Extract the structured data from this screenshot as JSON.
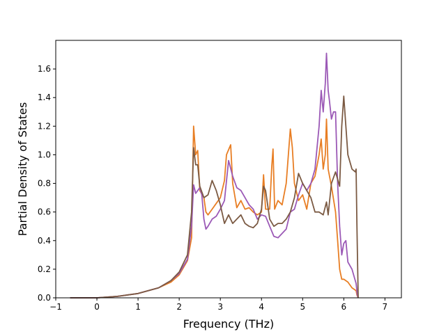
{
  "chart_data": {
    "type": "line",
    "title": "",
    "xlabel": "Frequency (THz)",
    "ylabel": "Partial Density of States",
    "xlim": [
      -1,
      7.4
    ],
    "ylim": [
      0,
      1.8
    ],
    "x_ticks": [
      -1,
      0,
      1,
      2,
      3,
      4,
      5,
      6,
      7
    ],
    "y_ticks": [
      0.0,
      0.2,
      0.4,
      0.6,
      0.8,
      1.0,
      1.2,
      1.4,
      1.6
    ],
    "x_tick_labels": [
      "−1",
      "0",
      "1",
      "2",
      "3",
      "4",
      "5",
      "6",
      "7"
    ],
    "y_tick_labels": [
      "0.0",
      "0.2",
      "0.4",
      "0.6",
      "0.8",
      "1.0",
      "1.2",
      "1.4",
      "1.6"
    ],
    "grid": false,
    "legend": "none",
    "series": [
      {
        "color": "#e87e24",
        "points": [
          [
            -0.65,
            0
          ],
          [
            0,
            0
          ],
          [
            0.5,
            0.01
          ],
          [
            1.0,
            0.03
          ],
          [
            1.5,
            0.07
          ],
          [
            1.8,
            0.11
          ],
          [
            2.0,
            0.16
          ],
          [
            2.2,
            0.26
          ],
          [
            2.3,
            0.42
          ],
          [
            2.35,
            1.2
          ],
          [
            2.4,
            1.0
          ],
          [
            2.45,
            1.03
          ],
          [
            2.5,
            0.75
          ],
          [
            2.6,
            0.7
          ],
          [
            2.65,
            0.6
          ],
          [
            2.7,
            0.58
          ],
          [
            2.8,
            0.62
          ],
          [
            2.9,
            0.66
          ],
          [
            3.0,
            0.7
          ],
          [
            3.1,
            0.82
          ],
          [
            3.15,
            1.0
          ],
          [
            3.25,
            1.07
          ],
          [
            3.3,
            0.8
          ],
          [
            3.4,
            0.63
          ],
          [
            3.5,
            0.68
          ],
          [
            3.6,
            0.62
          ],
          [
            3.7,
            0.63
          ],
          [
            3.8,
            0.6
          ],
          [
            3.9,
            0.58
          ],
          [
            4.0,
            0.6
          ],
          [
            4.05,
            0.86
          ],
          [
            4.1,
            0.62
          ],
          [
            4.2,
            0.62
          ],
          [
            4.25,
            0.92
          ],
          [
            4.28,
            1.04
          ],
          [
            4.32,
            0.62
          ],
          [
            4.4,
            0.68
          ],
          [
            4.5,
            0.65
          ],
          [
            4.6,
            0.8
          ],
          [
            4.7,
            1.18
          ],
          [
            4.75,
            1.05
          ],
          [
            4.8,
            0.8
          ],
          [
            4.9,
            0.68
          ],
          [
            5.0,
            0.72
          ],
          [
            5.1,
            0.62
          ],
          [
            5.2,
            0.8
          ],
          [
            5.3,
            0.85
          ],
          [
            5.4,
            1.0
          ],
          [
            5.45,
            1.11
          ],
          [
            5.5,
            0.9
          ],
          [
            5.55,
            1.0
          ],
          [
            5.58,
            1.25
          ],
          [
            5.62,
            0.9
          ],
          [
            5.7,
            0.78
          ],
          [
            5.8,
            0.6
          ],
          [
            5.85,
            0.4
          ],
          [
            5.9,
            0.2
          ],
          [
            5.95,
            0.13
          ],
          [
            6.0,
            0.13
          ],
          [
            6.1,
            0.11
          ],
          [
            6.2,
            0.07
          ],
          [
            6.3,
            0.05
          ],
          [
            6.32,
            0.02
          ],
          [
            6.35,
            0
          ]
        ]
      },
      {
        "color": "#9b59b6",
        "points": [
          [
            -0.65,
            0
          ],
          [
            0,
            0
          ],
          [
            0.5,
            0.01
          ],
          [
            1.0,
            0.03
          ],
          [
            1.5,
            0.07
          ],
          [
            1.8,
            0.12
          ],
          [
            2.0,
            0.17
          ],
          [
            2.2,
            0.27
          ],
          [
            2.3,
            0.5
          ],
          [
            2.35,
            0.79
          ],
          [
            2.4,
            0.73
          ],
          [
            2.5,
            0.77
          ],
          [
            2.55,
            0.72
          ],
          [
            2.6,
            0.55
          ],
          [
            2.65,
            0.48
          ],
          [
            2.7,
            0.5
          ],
          [
            2.8,
            0.55
          ],
          [
            2.9,
            0.57
          ],
          [
            3.0,
            0.62
          ],
          [
            3.1,
            0.68
          ],
          [
            3.2,
            0.96
          ],
          [
            3.3,
            0.85
          ],
          [
            3.4,
            0.77
          ],
          [
            3.5,
            0.75
          ],
          [
            3.6,
            0.7
          ],
          [
            3.7,
            0.65
          ],
          [
            3.8,
            0.62
          ],
          [
            3.9,
            0.55
          ],
          [
            4.0,
            0.58
          ],
          [
            4.1,
            0.57
          ],
          [
            4.2,
            0.5
          ],
          [
            4.3,
            0.43
          ],
          [
            4.4,
            0.42
          ],
          [
            4.5,
            0.45
          ],
          [
            4.6,
            0.48
          ],
          [
            4.7,
            0.6
          ],
          [
            4.8,
            0.62
          ],
          [
            4.9,
            0.72
          ],
          [
            5.0,
            0.8
          ],
          [
            5.1,
            0.75
          ],
          [
            5.2,
            0.8
          ],
          [
            5.3,
            0.9
          ],
          [
            5.4,
            1.2
          ],
          [
            5.45,
            1.45
          ],
          [
            5.5,
            1.3
          ],
          [
            5.55,
            1.5
          ],
          [
            5.58,
            1.71
          ],
          [
            5.62,
            1.45
          ],
          [
            5.65,
            1.38
          ],
          [
            5.7,
            1.25
          ],
          [
            5.75,
            1.3
          ],
          [
            5.8,
            1.3
          ],
          [
            5.85,
            0.8
          ],
          [
            5.9,
            0.5
          ],
          [
            5.95,
            0.3
          ],
          [
            6.0,
            0.38
          ],
          [
            6.05,
            0.4
          ],
          [
            6.1,
            0.25
          ],
          [
            6.2,
            0.2
          ],
          [
            6.3,
            0.1
          ],
          [
            6.33,
            0.02
          ],
          [
            6.35,
            0
          ]
        ]
      },
      {
        "color": "#7b5a43",
        "points": [
          [
            -0.65,
            0
          ],
          [
            0,
            0
          ],
          [
            0.5,
            0.01
          ],
          [
            1.0,
            0.03
          ],
          [
            1.5,
            0.07
          ],
          [
            1.8,
            0.12
          ],
          [
            2.0,
            0.18
          ],
          [
            2.2,
            0.3
          ],
          [
            2.3,
            0.6
          ],
          [
            2.35,
            1.05
          ],
          [
            2.4,
            0.93
          ],
          [
            2.45,
            0.93
          ],
          [
            2.5,
            0.78
          ],
          [
            2.6,
            0.7
          ],
          [
            2.7,
            0.72
          ],
          [
            2.8,
            0.82
          ],
          [
            2.9,
            0.75
          ],
          [
            3.0,
            0.65
          ],
          [
            3.1,
            0.52
          ],
          [
            3.2,
            0.58
          ],
          [
            3.3,
            0.52
          ],
          [
            3.4,
            0.55
          ],
          [
            3.5,
            0.58
          ],
          [
            3.6,
            0.52
          ],
          [
            3.7,
            0.5
          ],
          [
            3.8,
            0.49
          ],
          [
            3.9,
            0.52
          ],
          [
            4.0,
            0.62
          ],
          [
            4.05,
            0.78
          ],
          [
            4.1,
            0.75
          ],
          [
            4.2,
            0.55
          ],
          [
            4.3,
            0.5
          ],
          [
            4.4,
            0.52
          ],
          [
            4.5,
            0.52
          ],
          [
            4.6,
            0.55
          ],
          [
            4.7,
            0.6
          ],
          [
            4.8,
            0.7
          ],
          [
            4.9,
            0.87
          ],
          [
            5.0,
            0.8
          ],
          [
            5.1,
            0.75
          ],
          [
            5.2,
            0.7
          ],
          [
            5.3,
            0.6
          ],
          [
            5.4,
            0.6
          ],
          [
            5.5,
            0.58
          ],
          [
            5.58,
            0.67
          ],
          [
            5.62,
            0.58
          ],
          [
            5.7,
            0.8
          ],
          [
            5.8,
            0.88
          ],
          [
            5.9,
            0.78
          ],
          [
            5.95,
            1.2
          ],
          [
            6.0,
            1.41
          ],
          [
            6.05,
            1.2
          ],
          [
            6.1,
            1.0
          ],
          [
            6.2,
            0.9
          ],
          [
            6.28,
            0.88
          ],
          [
            6.3,
            0.9
          ],
          [
            6.32,
            0.5
          ],
          [
            6.35,
            0
          ]
        ]
      }
    ]
  }
}
